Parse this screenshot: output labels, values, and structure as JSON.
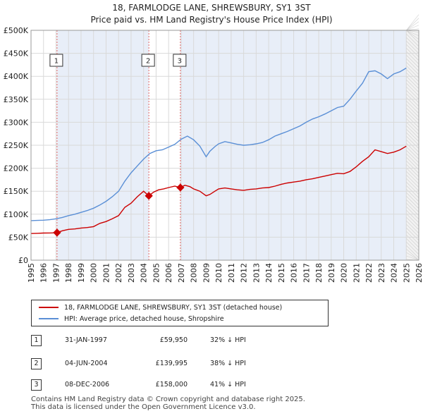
{
  "header": {
    "title_line1": "18, FARMLODGE LANE, SHREWSBURY, SY1 3ST",
    "title_line2": "Price paid vs. HM Land Registry's House Price Index (HPI)"
  },
  "colors": {
    "price": "#cc0000",
    "hpi": "#5a8fd6",
    "grid": "#d9d9d9",
    "band": "#e8eef8",
    "marker_line": "#e06666"
  },
  "chart_data": {
    "type": "line",
    "x_range": [
      1995,
      2026
    ],
    "ylim": [
      0,
      500000
    ],
    "x_ticks": [
      "1995",
      "1996",
      "1997",
      "1998",
      "1999",
      "2000",
      "2001",
      "2002",
      "2003",
      "2004",
      "2005",
      "2006",
      "2007",
      "2008",
      "2009",
      "2010",
      "2011",
      "2012",
      "2013",
      "2014",
      "2015",
      "2016",
      "2017",
      "2018",
      "2019",
      "2020",
      "2021",
      "2022",
      "2023",
      "2024",
      "2025",
      "2026"
    ],
    "y_ticks": [
      {
        "value": 0,
        "label": "£0"
      },
      {
        "value": 50000,
        "label": "£50K"
      },
      {
        "value": 100000,
        "label": "£100K"
      },
      {
        "value": 150000,
        "label": "£150K"
      },
      {
        "value": 200000,
        "label": "£200K"
      },
      {
        "value": 250000,
        "label": "£250K"
      },
      {
        "value": 300000,
        "label": "£300K"
      },
      {
        "value": 350000,
        "label": "£350K"
      },
      {
        "value": 400000,
        "label": "£400K"
      },
      {
        "value": 450000,
        "label": "£450K"
      },
      {
        "value": 500000,
        "label": "£500K"
      }
    ],
    "shaded_bands": [
      [
        1997.08,
        2004.42
      ],
      [
        2006.94,
        2025.0
      ]
    ],
    "series": [
      {
        "name": "18, FARMLODGE LANE, SHREWSBURY, SY1 3ST (detached house)",
        "x": [
          1995,
          1995.5,
          1996,
          1996.5,
          1997,
          1997.08,
          1997.5,
          1998,
          1998.5,
          1999,
          1999.5,
          2000,
          2000.5,
          2001,
          2001.5,
          2002,
          2002.5,
          2003,
          2003.5,
          2004,
          2004.42,
          2004.8,
          2005.2,
          2005.6,
          2006,
          2006.5,
          2006.94,
          2007.3,
          2007.7,
          2008,
          2008.5,
          2009,
          2009.3,
          2009.7,
          2010,
          2010.5,
          2011,
          2011.5,
          2012,
          2012.5,
          2013,
          2013.5,
          2014,
          2014.5,
          2015,
          2015.5,
          2016,
          2016.5,
          2017,
          2017.5,
          2018,
          2018.5,
          2019,
          2019.5,
          2020,
          2020.5,
          2021,
          2021.5,
          2022,
          2022.5,
          2023,
          2023.5,
          2024,
          2024.5,
          2025
        ],
        "values": [
          58000,
          58500,
          59000,
          59200,
          59500,
          59950,
          64000,
          67000,
          68000,
          70000,
          71000,
          73000,
          80000,
          84000,
          90000,
          97000,
          115000,
          124000,
          138000,
          150000,
          139995,
          148000,
          153000,
          155000,
          158000,
          161000,
          158000,
          163000,
          160000,
          155000,
          150000,
          140000,
          143000,
          150000,
          155000,
          157000,
          155000,
          153000,
          152000,
          154000,
          155000,
          157000,
          158000,
          161000,
          165000,
          168000,
          170000,
          172000,
          175000,
          177000,
          180000,
          183000,
          186000,
          189000,
          188000,
          193000,
          203000,
          215000,
          225000,
          240000,
          236000,
          232000,
          235000,
          240000,
          248000
        ]
      },
      {
        "name": "HPI: Average price, detached house, Shropshire",
        "x": [
          1995,
          1995.5,
          1996,
          1996.5,
          1997,
          1997.5,
          1998,
          1998.5,
          1999,
          1999.5,
          2000,
          2000.5,
          2001,
          2001.5,
          2002,
          2002.5,
          2003,
          2003.5,
          2004,
          2004.5,
          2005,
          2005.5,
          2006,
          2006.5,
          2007,
          2007.5,
          2008,
          2008.5,
          2009,
          2009.3,
          2009.7,
          2010,
          2010.5,
          2011,
          2011.5,
          2012,
          2012.5,
          2013,
          2013.5,
          2014,
          2014.5,
          2015,
          2015.5,
          2016,
          2016.5,
          2017,
          2017.5,
          2018,
          2018.5,
          2019,
          2019.5,
          2020,
          2020.5,
          2021,
          2021.5,
          2022,
          2022.5,
          2023,
          2023.5,
          2024,
          2024.5,
          2025
        ],
        "values": [
          86000,
          86500,
          87000,
          88000,
          90000,
          93000,
          97000,
          100000,
          104000,
          108000,
          113000,
          120000,
          128000,
          138000,
          150000,
          172000,
          190000,
          205000,
          220000,
          232000,
          238000,
          240000,
          246000,
          252000,
          263000,
          270000,
          262000,
          248000,
          225000,
          237000,
          247000,
          253000,
          258000,
          255000,
          252000,
          250000,
          251000,
          253000,
          256000,
          262000,
          270000,
          275000,
          280000,
          286000,
          292000,
          300000,
          307000,
          312000,
          318000,
          325000,
          332000,
          335000,
          350000,
          368000,
          385000,
          410000,
          412000,
          405000,
          395000,
          405000,
          410000,
          418000
        ]
      }
    ],
    "sales": [
      {
        "num": "1",
        "x": 1997.08,
        "price": 59950
      },
      {
        "num": "2",
        "x": 2004.42,
        "price": 139995
      },
      {
        "num": "3",
        "x": 2006.94,
        "price": 158000
      }
    ]
  },
  "legend": {
    "price_label": "18, FARMLODGE LANE, SHREWSBURY, SY1 3ST (detached house)",
    "hpi_label": "HPI: Average price, detached house, Shropshire"
  },
  "transactions": [
    {
      "num": "1",
      "date": "31-JAN-1997",
      "price": "£59,950",
      "diff": "32% ↓ HPI"
    },
    {
      "num": "2",
      "date": "04-JUN-2004",
      "price": "£139,995",
      "diff": "38% ↓ HPI"
    },
    {
      "num": "3",
      "date": "08-DEC-2006",
      "price": "£158,000",
      "diff": "41% ↓ HPI"
    }
  ],
  "footer": {
    "line1": "Contains HM Land Registry data © Crown copyright and database right 2025.",
    "line2": "This data is licensed under the Open Government Licence v3.0."
  }
}
